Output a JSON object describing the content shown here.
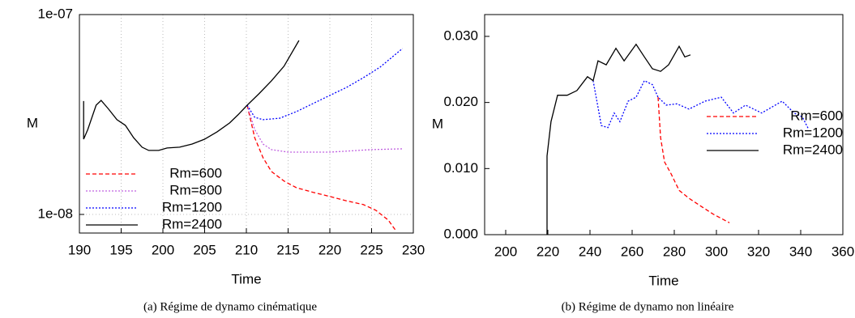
{
  "chart_data": [
    {
      "type": "line",
      "xlabel": "Time",
      "ylabel": "M",
      "caption": "(a)  Régime de dynamo cinématique",
      "xlim": [
        190,
        230
      ],
      "xticks": [
        190,
        195,
        200,
        205,
        210,
        215,
        220,
        225,
        230
      ],
      "ylim": [
        8.07e-09,
        1e-07
      ],
      "ylog": true,
      "yticks": [
        {
          "value": 1e-08,
          "label": "1e-08"
        },
        {
          "value": 1e-07,
          "label": "1e-07"
        }
      ],
      "grid": true,
      "legend": "lower left",
      "series": [
        {
          "name": "Rm=600",
          "color": "#ff0000",
          "style": "dashed",
          "x": [
            210.1,
            211,
            212,
            213,
            214.5,
            216,
            218,
            220,
            222,
            224,
            225.5,
            227,
            227.9
          ],
          "values": [
            3.52e-08,
            2.42e-08,
            1.92e-08,
            1.64e-08,
            1.47e-08,
            1.36e-08,
            1.29e-08,
            1.23e-08,
            1.17e-08,
            1.12e-08,
            1.05e-08,
            9.37e-09,
            8.3e-09
          ]
        },
        {
          "name": "Rm=800",
          "color": "#c060e0",
          "style": "dotted",
          "x": [
            210.1,
            211,
            212,
            213,
            215,
            220,
            225,
            228.7
          ],
          "values": [
            3.52e-08,
            2.66e-08,
            2.25e-08,
            2.11e-08,
            2.05e-08,
            2.05e-08,
            2.11e-08,
            2.13e-08
          ]
        },
        {
          "name": "Rm=1200",
          "color": "#0000ff",
          "style": "dotted",
          "x": [
            210.1,
            211,
            212,
            214,
            216,
            218,
            220,
            222,
            224,
            226,
            228.7
          ],
          "values": [
            3.52e-08,
            3.06e-08,
            2.98e-08,
            3.03e-08,
            3.27e-08,
            3.59e-08,
            3.94e-08,
            4.32e-08,
            4.83e-08,
            5.45e-08,
            6.76e-08
          ]
        },
        {
          "name": "Rm=2400",
          "color": "#000000",
          "style": "solid",
          "x": [
            190.5,
            190.5,
            191,
            192,
            192.6,
            193.5,
            194.5,
            195.5,
            196.5,
            197.5,
            198.3,
            199.5,
            200.5,
            202,
            203.5,
            205,
            206.5,
            208,
            209,
            210.1,
            211.5,
            213,
            214.5,
            216.3
          ],
          "values": [
            3.69e-08,
            2.38e-08,
            2.66e-08,
            3.52e-08,
            3.72e-08,
            3.36e-08,
            2.98e-08,
            2.79e-08,
            2.42e-08,
            2.17e-08,
            2.09e-08,
            2.09e-08,
            2.15e-08,
            2.17e-08,
            2.25e-08,
            2.38e-08,
            2.59e-08,
            2.87e-08,
            3.15e-08,
            3.52e-08,
            4.01e-08,
            4.66e-08,
            5.51e-08,
            7.42e-08
          ]
        }
      ]
    },
    {
      "type": "line",
      "xlabel": "Time",
      "ylabel": "M",
      "caption": "(b)  Régime de dynamo non linéaire",
      "xlim": [
        190,
        360
      ],
      "xticks": [
        200,
        220,
        240,
        260,
        280,
        300,
        320,
        340,
        360
      ],
      "ylim": [
        0,
        0.0333
      ],
      "yticks": [
        {
          "value": 0,
          "label": "0.000"
        },
        {
          "value": 0.01,
          "label": "0.010"
        },
        {
          "value": 0.02,
          "label": "0.020"
        },
        {
          "value": 0.03,
          "label": "0.030"
        }
      ],
      "grid": false,
      "legend": "center right",
      "series": [
        {
          "name": "Rm=600",
          "color": "#ff0000",
          "style": "dashed",
          "x": [
            272.3,
            273.5,
            275.4,
            278.5,
            282.3,
            287,
            292.7,
            298.5,
            306.2
          ],
          "values": [
            0.0208,
            0.0147,
            0.011,
            0.0092,
            0.0067,
            0.0055,
            0.0043,
            0.0031,
            0.0018
          ]
        },
        {
          "name": "Rm=1200",
          "color": "#0000ff",
          "style": "dotted",
          "x": [
            241.5,
            245.4,
            248.5,
            251.5,
            254.2,
            258.1,
            261.9,
            265.8,
            269.6,
            272.3,
            276.2,
            281.2,
            287,
            294.6,
            302.3,
            308.1,
            313.8,
            321.5,
            331.2,
            336.9,
            340.8,
            343.8
          ],
          "values": [
            0.0233,
            0.0165,
            0.0162,
            0.0184,
            0.0171,
            0.0202,
            0.0208,
            0.0233,
            0.0227,
            0.0208,
            0.0196,
            0.0198,
            0.019,
            0.0202,
            0.0208,
            0.0184,
            0.0196,
            0.0184,
            0.0202,
            0.0184,
            0.0178,
            0.0159
          ]
        },
        {
          "name": "Rm=2400",
          "color": "#000000",
          "style": "solid",
          "x": [
            219.6,
            219.6,
            221.5,
            224.6,
            229.2,
            233.8,
            238.8,
            241.5,
            243.8,
            247.7,
            252.3,
            256.2,
            261.9,
            265.8,
            269.6,
            273.5,
            277.3,
            282.3,
            285,
            287.7
          ],
          "values": [
            0,
            0.0119,
            0.0171,
            0.0211,
            0.0211,
            0.0218,
            0.0239,
            0.0233,
            0.0263,
            0.0257,
            0.0282,
            0.0263,
            0.0288,
            0.0269,
            0.0251,
            0.0247,
            0.0257,
            0.0285,
            0.0269,
            0.0272
          ]
        }
      ]
    }
  ]
}
